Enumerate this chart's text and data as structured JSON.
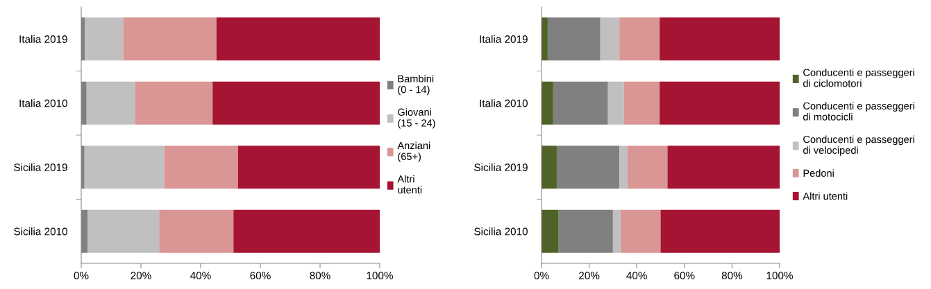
{
  "chart_data": [
    {
      "type": "bar",
      "orientation": "horizontal",
      "stacked": true,
      "categories": [
        "Italia 2019",
        "Italia 2010",
        "Sicilia 2019",
        "Sicilia 2010"
      ],
      "series": [
        {
          "name": "Bambini\n(0 - 14)",
          "color": "#808080",
          "values": [
            1.2,
            1.8,
            1.1,
            2.2
          ]
        },
        {
          "name": "Giovani\n(15 - 24)",
          "color": "#c0c0c0",
          "values": [
            12.9,
            16.2,
            26.7,
            23.9
          ]
        },
        {
          "name": "Anziani\n(65+)",
          "color": "#d99694",
          "values": [
            31.2,
            26.0,
            24.7,
            24.9
          ]
        },
        {
          "name": "Altri\nutenti",
          "color": "#a61433",
          "values": [
            54.7,
            56.0,
            47.5,
            49.0
          ]
        }
      ],
      "xlim": [
        0,
        100
      ],
      "xticks": [
        {
          "value": 0,
          "label": "0%"
        },
        {
          "value": 20,
          "label": "20%"
        },
        {
          "value": 40,
          "label": "40%"
        },
        {
          "value": 60,
          "label": "60%"
        },
        {
          "value": 80,
          "label": "80%"
        },
        {
          "value": 100,
          "label": "100%"
        }
      ],
      "grid": false,
      "legend": "right"
    },
    {
      "type": "bar",
      "orientation": "horizontal",
      "stacked": true,
      "categories": [
        "Italia 2019",
        "Italia 2010",
        "Sicilia 2019",
        "Sicilia 2010"
      ],
      "series": [
        {
          "name": "Conducenti e passeggeri\ndi ciclomotori",
          "color": "#4f6228",
          "values": [
            2.6,
            4.9,
            6.4,
            7.2
          ]
        },
        {
          "name": "Conducenti e passeggeri\ndi motocicli",
          "color": "#808080",
          "values": [
            22.1,
            23.0,
            26.3,
            22.8
          ]
        },
        {
          "name": "Conducenti e passeggeri\ndi velocipedi",
          "color": "#c0c0c0",
          "values": [
            8.0,
            6.7,
            3.4,
            3.2
          ]
        },
        {
          "name": "Pedoni",
          "color": "#d99694",
          "values": [
            16.9,
            15.0,
            16.8,
            16.8
          ]
        },
        {
          "name": "Altri utenti",
          "color": "#a61433",
          "values": [
            50.4,
            50.4,
            47.1,
            50.0
          ]
        }
      ],
      "xlim": [
        0,
        100
      ],
      "xticks": [
        {
          "value": 0,
          "label": "0%"
        },
        {
          "value": 20,
          "label": "20%"
        },
        {
          "value": 40,
          "label": "40%"
        },
        {
          "value": 60,
          "label": "60%"
        },
        {
          "value": 80,
          "label": "80%"
        },
        {
          "value": 100,
          "label": "100%"
        }
      ],
      "grid": false,
      "legend": "right"
    }
  ]
}
